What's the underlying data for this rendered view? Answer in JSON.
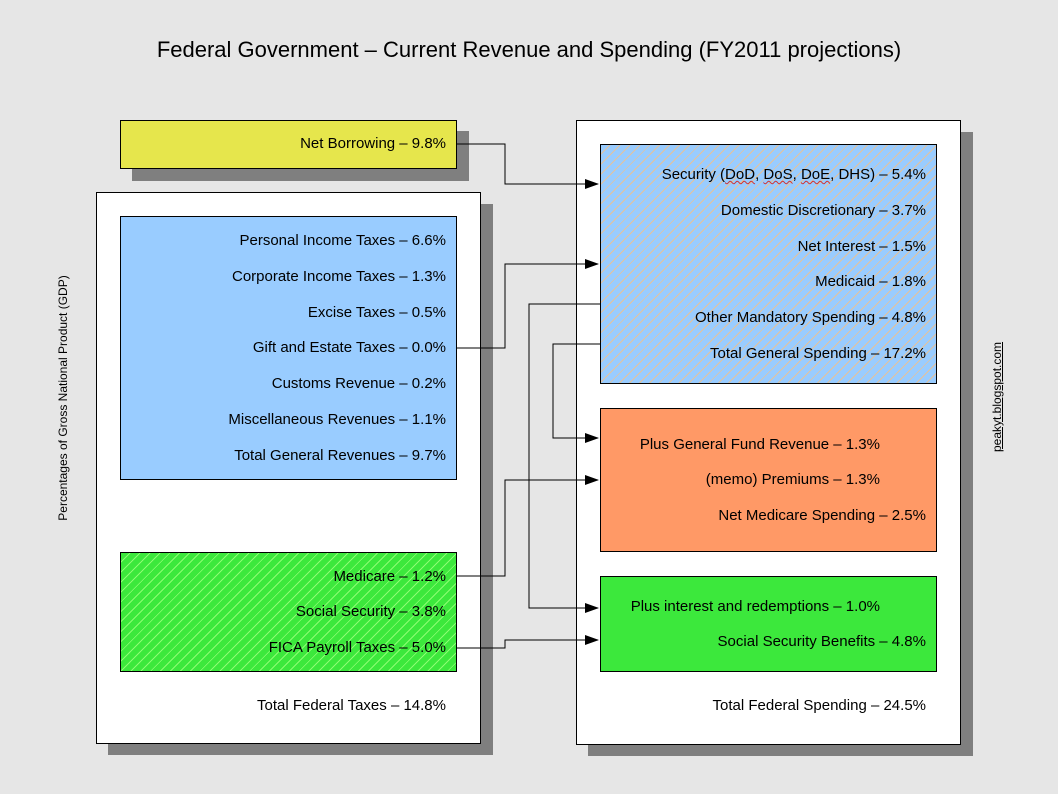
{
  "title": "Federal Government – Current Revenue and Spending (FY2011 projections)",
  "y_axis_label": "Percentages of Gross National Product (GDP)",
  "watermark": "peakyt.blogspot.com",
  "net_borrowing": "Net Borrowing – 9.8%",
  "revenues": {
    "general": [
      "Personal Income Taxes – 6.6%",
      "Corporate Income Taxes – 1.3%",
      "Excise Taxes – 0.5%",
      "Gift and Estate Taxes – 0.0%",
      "Customs Revenue – 0.2%",
      "Miscellaneous Revenues – 1.1%",
      "Total General Revenues – 9.7%"
    ],
    "payroll": [
      "Medicare – 1.2%",
      "Social Security – 3.8%",
      "FICA Payroll Taxes – 5.0%"
    ],
    "total": "Total Federal Taxes – 14.8%"
  },
  "spending": {
    "general": {
      "security_parts": [
        "Security (",
        "DoD",
        ", ",
        "DoS",
        ", ",
        "DoE",
        ", DHS) – 5.4%"
      ],
      "items": [
        "Domestic Discretionary – 3.7%",
        "Net Interest – 1.5%",
        "Medicaid – 1.8%",
        "Other Mandatory Spending – 4.8%",
        "Total General Spending – 17.2%"
      ]
    },
    "medicare": [
      "Plus General Fund Revenue  – 1.3%",
      "(memo) Premiums – 1.3%",
      "Net Medicare Spending – 2.5%"
    ],
    "social_security": [
      "Plus interest and redemptions – 1.0%",
      "Social Security Benefits – 4.8%"
    ],
    "total": "Total Federal Spending – 24.5%"
  },
  "colors": {
    "background": "#e6e6e6",
    "general_revenue_box": "#99ccff",
    "payroll_box": "#3ce83c",
    "medicare_box": "#ff9966",
    "net_borrowing_box": "#e6e64c",
    "shadow": "#7f7f7f"
  }
}
